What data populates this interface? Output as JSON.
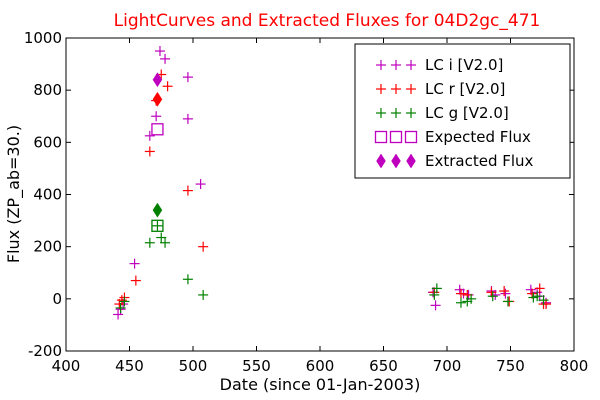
{
  "chart_data": {
    "type": "scatter",
    "title": "LightCurves and Extracted Fluxes for 04D2gc_471",
    "xlabel": "Date (since 01-Jan-2003)",
    "ylabel": "Flux (ZP_ab=30.)",
    "xlim": [
      400,
      800
    ],
    "ylim": [
      -200,
      1000
    ],
    "x_ticks": [
      400,
      450,
      500,
      550,
      600,
      650,
      700,
      750,
      800
    ],
    "y_ticks": [
      -200,
      0,
      200,
      400,
      600,
      800,
      1000
    ],
    "grid": false,
    "legend_position": "top-right",
    "series": [
      {
        "name": "LC i [V2.0]",
        "marker": "plus",
        "color": "#bf00bf",
        "x": [
          441,
          443,
          445,
          454,
          466,
          471,
          474,
          478,
          496,
          496,
          506,
          689,
          691,
          710,
          713,
          717,
          735,
          738,
          746,
          766,
          771,
          773,
          778
        ],
        "y": [
          -60,
          -40,
          -20,
          135,
          625,
          700,
          950,
          920,
          850,
          690,
          440,
          25,
          -25,
          35,
          20,
          15,
          30,
          15,
          20,
          35,
          25,
          10,
          -15
        ]
      },
      {
        "name": "LC r [V2.0]",
        "marker": "plus",
        "color": "#ff0000",
        "x": [
          442,
          444,
          446,
          455,
          466,
          471,
          475,
          480,
          496,
          508,
          690,
          711,
          716,
          735,
          745,
          749,
          767,
          773,
          776,
          778
        ],
        "y": [
          -20,
          -5,
          5,
          70,
          565,
          760,
          860,
          815,
          415,
          200,
          25,
          20,
          15,
          25,
          30,
          -10,
          20,
          40,
          -20,
          -20
        ]
      },
      {
        "name": "LC g [V2.0]",
        "marker": "plus",
        "color": "#008000",
        "x": [
          443,
          446,
          466,
          472,
          475,
          478,
          496,
          508,
          690,
          692,
          711,
          716,
          719,
          736,
          748,
          768,
          771,
          776
        ],
        "y": [
          -35,
          -10,
          215,
          280,
          235,
          215,
          75,
          15,
          15,
          40,
          -15,
          -10,
          0,
          10,
          -10,
          5,
          10,
          -5
        ]
      },
      {
        "name": "Expected Flux",
        "marker": "square",
        "x": [
          472,
          472
        ],
        "y": [
          650,
          280
        ],
        "colors": [
          "#bf00bf",
          "#008000"
        ]
      },
      {
        "name": "Extracted Flux",
        "marker": "diamond",
        "x": [
          472,
          472,
          472
        ],
        "y": [
          840,
          765,
          340
        ],
        "colors": [
          "#bf00bf",
          "#ff0000",
          "#008000"
        ]
      }
    ],
    "legend": [
      {
        "label": "LC i [V2.0]",
        "marker": "plus",
        "color": "#bf00bf"
      },
      {
        "label": "LC r [V2.0]",
        "marker": "plus",
        "color": "#ff0000"
      },
      {
        "label": "LC g [V2.0]",
        "marker": "plus",
        "color": "#008000"
      },
      {
        "label": "Expected Flux",
        "marker": "square",
        "color": "#bf00bf"
      },
      {
        "label": "Extracted Flux",
        "marker": "diamond",
        "color": "#bf00bf"
      }
    ]
  }
}
